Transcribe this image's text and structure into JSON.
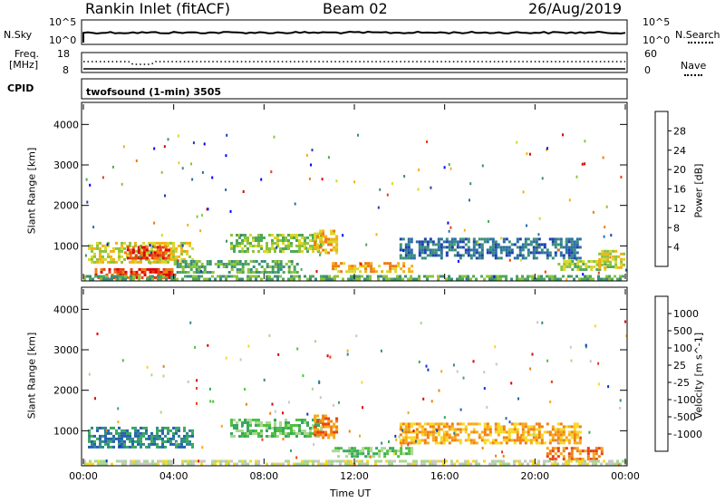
{
  "header": {
    "station": "Rankin Inlet (fitACF)",
    "beam": "Beam 02",
    "date": "26/Aug/2019"
  },
  "strips": {
    "nsky_label": "N.Sky",
    "nsky_ticks": [
      "10^5",
      "10^0"
    ],
    "nsearch_label": "N.Search",
    "nsearch_ticks": [
      "10^5",
      "10^0"
    ],
    "freq_label_1": "Freq.",
    "freq_label_2": "[MHz]",
    "freq_ticks": [
      "18",
      "8"
    ],
    "nave_label": "Nave",
    "nave_ticks": [
      "60",
      "0"
    ],
    "cpid_label": "CPID",
    "cpid_text": "twofsound (1-min) 3505"
  },
  "chart_data": [
    {
      "type": "heatmap",
      "ylabel": "Slant Range [km]",
      "xlabel": "Time UT",
      "x_ticks": [
        "00:00",
        "04:00",
        "08:00",
        "12:00",
        "16:00",
        "20:00",
        "00:00"
      ],
      "y_ticks": [
        "1000",
        "2000",
        "3000",
        "4000"
      ],
      "colorbar": {
        "label": "Power [dB]",
        "ticks": [
          "4",
          "8",
          "12",
          "16",
          "20",
          "24",
          "28"
        ],
        "colors": [
          "#0000ff",
          "#1f3fb0",
          "#2c6fa5",
          "#3a8f7a",
          "#4fa85a",
          "#8cc43c",
          "#d8d828",
          "#f6b012",
          "#f07a10",
          "#e84010",
          "#e00000"
        ]
      },
      "regions": [
        {
          "t": [
            0.2,
            4.8
          ],
          "r": [
            600,
            1100
          ],
          "level": 6
        },
        {
          "t": [
            1.8,
            3.8
          ],
          "r": [
            700,
            1000
          ],
          "level": 9
        },
        {
          "t": [
            6.5,
            10.5
          ],
          "r": [
            850,
            1300
          ],
          "level": 5
        },
        {
          "t": [
            10.2,
            11.2
          ],
          "r": [
            800,
            1400
          ],
          "level": 7
        },
        {
          "t": [
            11.0,
            14.5
          ],
          "r": [
            350,
            600
          ],
          "level": 7
        },
        {
          "t": [
            4.0,
            9.5
          ],
          "r": [
            350,
            650
          ],
          "level": 4
        },
        {
          "t": [
            0.5,
            4.0
          ],
          "r": [
            230,
            450
          ],
          "level": 9
        },
        {
          "t": [
            14.0,
            22.0
          ],
          "r": [
            700,
            1200
          ],
          "level": 2
        },
        {
          "t": [
            21.0,
            23.5
          ],
          "r": [
            400,
            650
          ],
          "level": 5
        },
        {
          "t": [
            22.8,
            24.0
          ],
          "r": [
            450,
            900
          ],
          "level": 6
        },
        {
          "t": [
            0.0,
            24.0
          ],
          "r": [
            180,
            280
          ],
          "level": 4
        }
      ]
    },
    {
      "type": "heatmap",
      "ylabel": "Slant Range [km]",
      "xlabel": "Time UT",
      "x_ticks": [
        "00:00",
        "04:00",
        "08:00",
        "12:00",
        "16:00",
        "20:00",
        "00:00"
      ],
      "y_ticks": [
        "1000",
        "2000",
        "3000",
        "4000"
      ],
      "colorbar": {
        "label": "Velocity [m s^-1]",
        "ticks": [
          "1000",
          "500",
          "100",
          "25",
          "-25",
          "-100",
          "-500",
          "-1000"
        ],
        "colors": [
          "#1030d0",
          "#2860b0",
          "#2e8a8a",
          "#38a860",
          "#50c040",
          "#a8d890",
          "#c8c8c8",
          "#f8d820",
          "#f8a818",
          "#f08010",
          "#e84010",
          "#e00000"
        ]
      },
      "regions": [
        {
          "t": [
            0.2,
            4.8
          ],
          "r": [
            600,
            1100
          ],
          "level": 2
        },
        {
          "t": [
            6.5,
            10.5
          ],
          "r": [
            850,
            1300
          ],
          "level": 4
        },
        {
          "t": [
            10.2,
            11.2
          ],
          "r": [
            800,
            1400
          ],
          "level": 9
        },
        {
          "t": [
            11.0,
            14.5
          ],
          "r": [
            350,
            600
          ],
          "level": 4
        },
        {
          "t": [
            14.0,
            22.0
          ],
          "r": [
            700,
            1200
          ],
          "level": 8
        },
        {
          "t": [
            20.5,
            23.0
          ],
          "r": [
            300,
            600
          ],
          "level": 9
        },
        {
          "t": [
            0.0,
            24.0
          ],
          "r": [
            180,
            280
          ],
          "level": 6
        }
      ]
    }
  ]
}
